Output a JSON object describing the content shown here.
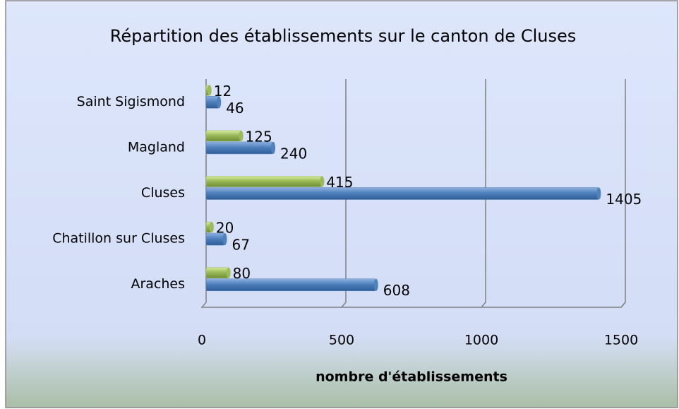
{
  "chart_data": {
    "type": "hbar",
    "title": "Répartition des établissements sur le canton de Cluses",
    "x_label": "nombre d'établissements",
    "categories": [
      "Araches",
      "Chatillon sur Cluses",
      "Cluses",
      "Magland",
      "Saint Sigismond"
    ],
    "series": [
      {
        "color": "#4f81bd",
        "values": [
          608,
          67,
          1405,
          240,
          46
        ]
      },
      {
        "color": "#9bbb59",
        "values": [
          80,
          20,
          415,
          125,
          12
        ]
      }
    ],
    "xlim": [
      0,
      1500
    ],
    "xticks": [
      0,
      500,
      1000,
      1500
    ],
    "grid": true
  }
}
